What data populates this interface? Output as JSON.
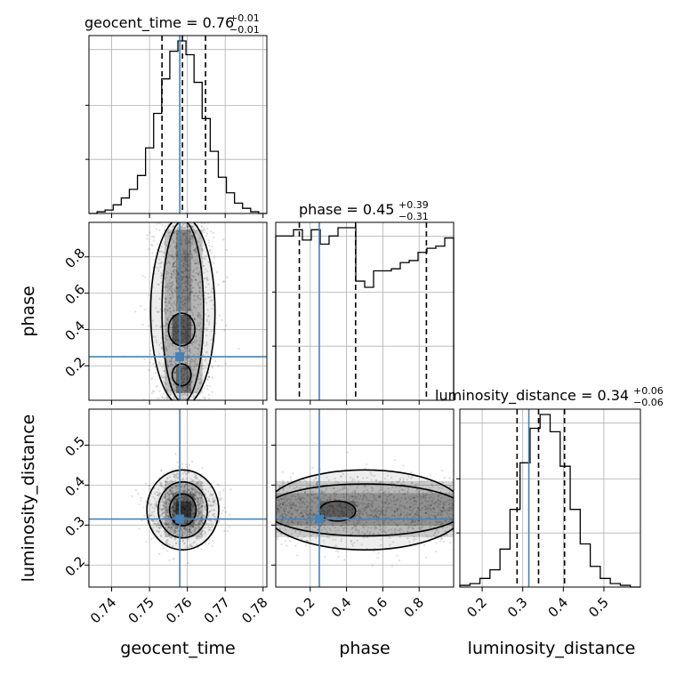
{
  "chart_data": {
    "type": "corner",
    "parameters": [
      "geocent_time",
      "phase",
      "luminosity_distance"
    ],
    "truth": {
      "geocent_time": 0.758,
      "phase": 0.25,
      "luminosity_distance": 0.315
    },
    "ranges": {
      "geocent_time": [
        0.734,
        0.781
      ],
      "phase": [
        0.01,
        0.99
      ],
      "luminosity_distance": [
        0.145,
        0.59
      ]
    },
    "ticks": {
      "geocent_time": {
        "values": [
          0.74,
          0.75,
          0.76,
          0.77,
          0.78
        ],
        "labels": [
          "0.74",
          "0.75",
          "0.76",
          "0.77",
          "0.78"
        ]
      },
      "phase": {
        "values": [
          0.2,
          0.4,
          0.6,
          0.8
        ],
        "labels": [
          "0.2",
          "0.4",
          "0.6",
          "0.8"
        ]
      },
      "luminosity_distance": {
        "values": [
          0.2,
          0.3,
          0.4,
          0.5
        ],
        "labels": [
          "0.2",
          "0.3",
          "0.4",
          "0.5"
        ]
      }
    },
    "titles": {
      "geocent_time": {
        "text": "geocent_time = 0.76",
        "plus": "+0.01",
        "minus": "−0.01"
      },
      "phase": {
        "text": "phase = 0.45",
        "plus": "+0.39",
        "minus": "−0.31"
      },
      "luminosity_distance": {
        "text": "luminosity_distance = 0.34",
        "plus": "+0.06",
        "minus": "−0.06"
      }
    },
    "quantiles": {
      "geocent_time": [
        0.7533,
        0.7587,
        0.7648
      ],
      "phase": [
        0.14,
        0.45,
        0.84
      ],
      "luminosity_distance": [
        0.286,
        0.339,
        0.403
      ]
    },
    "histograms": {
      "geocent_time": [
        0,
        1,
        2,
        5,
        9,
        14,
        22,
        38,
        58,
        78,
        94,
        100,
        92,
        76,
        55,
        36,
        21,
        12,
        6,
        3,
        1,
        0
      ],
      "phase": [
        80,
        80,
        83,
        78,
        83,
        76,
        80,
        84,
        84,
        58,
        55,
        63,
        63,
        64,
        67,
        68,
        72,
        74,
        75,
        79
      ],
      "luminosity_distance": [
        1,
        2,
        5,
        10,
        22,
        45,
        72,
        92,
        100,
        90,
        70,
        45,
        25,
        12,
        5,
        2,
        1,
        0
      ]
    },
    "axis_labels": {
      "x": [
        "geocent_time",
        "phase",
        "luminosity_distance"
      ],
      "y": [
        "",
        "phase",
        "luminosity_distance"
      ]
    },
    "grid": true,
    "truth_color": "#4682b4",
    "density_color": "#000000"
  }
}
